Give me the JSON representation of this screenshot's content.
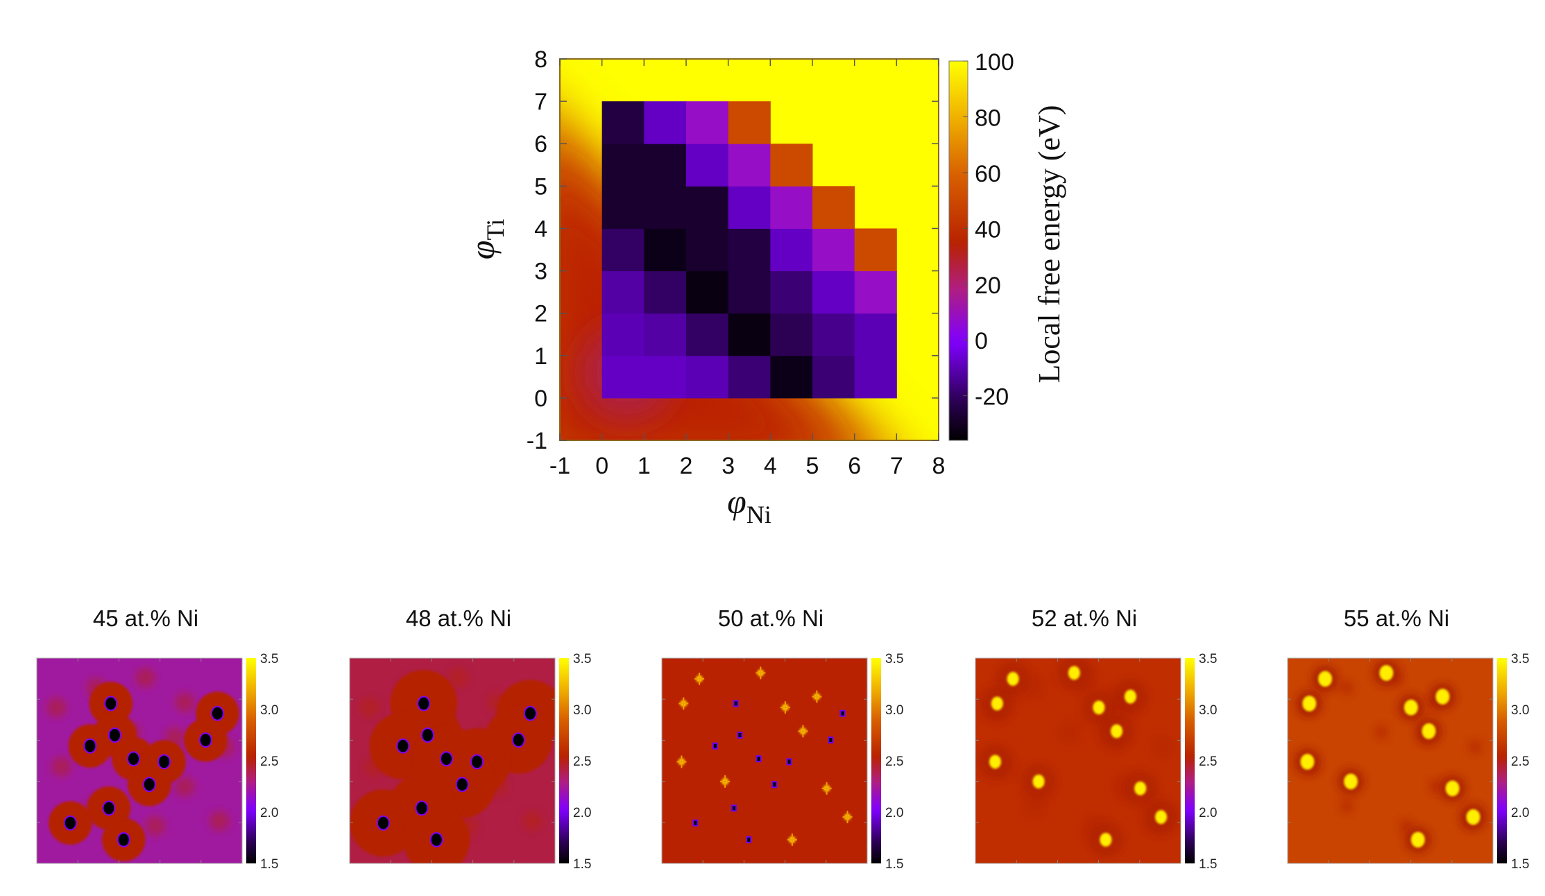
{
  "chart_data": [
    {
      "type": "heatmap",
      "xlabel": "φ",
      "xlabel_sub": "Ni",
      "ylabel": "φ",
      "ylabel_sub": "Ti",
      "xlim": [
        -1,
        8
      ],
      "ylim": [
        -1,
        8
      ],
      "x_ticks": [
        "-1",
        "0",
        "1",
        "2",
        "3",
        "4",
        "5",
        "6",
        "7",
        "8"
      ],
      "y_ticks": [
        "-1",
        "0",
        "1",
        "2",
        "3",
        "4",
        "5",
        "6",
        "7",
        "8"
      ],
      "colorbar": {
        "label": "Local free energy (eV)",
        "range": [
          -36,
          100
        ],
        "ticks": [
          "-20",
          "0",
          "20",
          "40",
          "60",
          "80",
          "100"
        ],
        "colormap": [
          "#000000",
          "#2a0050",
          "#8000ff",
          "#b01e80",
          "#b82200",
          "#d86000",
          "#f0b000",
          "#ffff00"
        ]
      },
      "cell_note_background_value": 100,
      "z_by_ti": [
        [
          -8,
          -8,
          -10,
          -18,
          -32,
          -18,
          -10
        ],
        [
          -10,
          -12,
          -20,
          -33,
          -22,
          -15,
          -10
        ],
        [
          -12,
          -20,
          -33,
          -25,
          -18,
          -8,
          8
        ],
        [
          -20,
          -32,
          -28,
          -25,
          -8,
          8,
          50
        ],
        [
          -28,
          -28,
          -28,
          -8,
          8,
          50
        ],
        [
          -28,
          -28,
          -8,
          8,
          50
        ],
        [
          -25,
          -8,
          8,
          50
        ]
      ],
      "grid": false
    },
    {
      "type": "image",
      "title": "45 at.% Ni",
      "colorbar": {
        "range": [
          1.5,
          3.5
        ],
        "ticks": [
          "1.5",
          "2.0",
          "2.5",
          "3.0",
          "3.5"
        ]
      }
    },
    {
      "type": "image",
      "title": "48 at.% Ni",
      "colorbar": {
        "range": [
          1.5,
          3.5
        ],
        "ticks": [
          "1.5",
          "2.0",
          "2.5",
          "3.0",
          "3.5"
        ]
      }
    },
    {
      "type": "image",
      "title": "50 at.% Ni",
      "colorbar": {
        "range": [
          1.5,
          3.5
        ],
        "ticks": [
          "1.5",
          "2.0",
          "2.5",
          "3.0",
          "3.5"
        ]
      }
    },
    {
      "type": "image",
      "title": "52 at.% Ni",
      "colorbar": {
        "range": [
          1.5,
          3.5
        ],
        "ticks": [
          "1.5",
          "2.0",
          "2.5",
          "3.0",
          "3.5"
        ]
      }
    },
    {
      "type": "image",
      "title": "55 at.% Ni",
      "colorbar": {
        "range": [
          1.5,
          3.5
        ],
        "ticks": [
          "1.5",
          "2.0",
          "2.5",
          "3.0",
          "3.5"
        ]
      }
    }
  ]
}
